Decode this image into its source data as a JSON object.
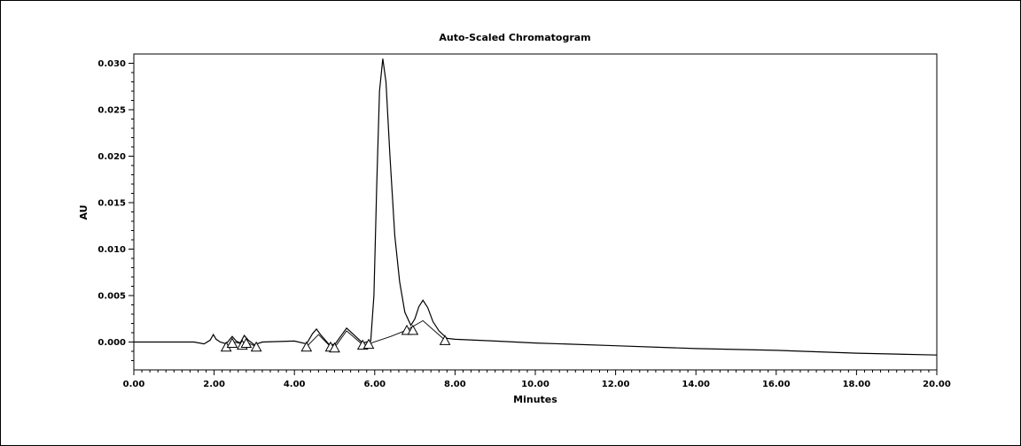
{
  "chart_data": {
    "type": "line",
    "title": "Auto-Scaled Chromatogram",
    "xlabel": "Minutes",
    "ylabel": "AU",
    "xlim": [
      0,
      20
    ],
    "ylim": [
      -0.003,
      0.031
    ],
    "grid": false,
    "x_ticks": [
      0,
      2,
      4,
      6,
      8,
      10,
      12,
      14,
      16,
      18,
      20
    ],
    "x_tick_labels": [
      "0.00",
      "2.00",
      "4.00",
      "6.00",
      "8.00",
      "10.00",
      "12.00",
      "14.00",
      "16.00",
      "18.00",
      "20.00"
    ],
    "y_ticks": [
      0,
      0.005,
      0.01,
      0.015,
      0.02,
      0.025,
      0.03
    ],
    "y_tick_labels": [
      "0.000",
      "0.005",
      "0.010",
      "0.015",
      "0.020",
      "0.025",
      "0.030"
    ],
    "series": [
      {
        "values": [
          [
            0,
            0
          ],
          [
            1.5,
            0
          ],
          [
            1.75,
            -0.0002
          ],
          [
            1.9,
            0.0002
          ],
          [
            1.98,
            0.0008
          ],
          [
            2.05,
            0.0003
          ],
          [
            2.15,
            0
          ],
          [
            2.3,
            -0.0002
          ],
          [
            2.45,
            0.0006
          ],
          [
            2.55,
            0.0001
          ],
          [
            2.65,
            -0.0001
          ],
          [
            2.75,
            0.0007
          ],
          [
            2.85,
            0.0002
          ],
          [
            3.0,
            -0.0003
          ],
          [
            3.2,
            0
          ],
          [
            4.0,
            0.0001
          ],
          [
            4.3,
            -0.0002
          ],
          [
            4.45,
            0.0009
          ],
          [
            4.55,
            0.0014
          ],
          [
            4.65,
            0.0008
          ],
          [
            4.85,
            -0.0002
          ],
          [
            5.0,
            -0.0003
          ],
          [
            5.15,
            0.0006
          ],
          [
            5.3,
            0.0015
          ],
          [
            5.45,
            0.0009
          ],
          [
            5.7,
            -0.0001
          ],
          [
            5.9,
            0.0001
          ],
          [
            5.98,
            0.005
          ],
          [
            6.05,
            0.017
          ],
          [
            6.12,
            0.027
          ],
          [
            6.2,
            0.0305
          ],
          [
            6.28,
            0.028
          ],
          [
            6.38,
            0.02
          ],
          [
            6.5,
            0.0115
          ],
          [
            6.62,
            0.0065
          ],
          [
            6.75,
            0.0032
          ],
          [
            6.9,
            0.0018
          ],
          [
            7.0,
            0.0025
          ],
          [
            7.1,
            0.0038
          ],
          [
            7.2,
            0.0045
          ],
          [
            7.32,
            0.0037
          ],
          [
            7.45,
            0.0022
          ],
          [
            7.6,
            0.0012
          ],
          [
            7.8,
            0.0004
          ],
          [
            8.0,
            0.0003
          ],
          [
            8.5,
            0.0002
          ],
          [
            9.0,
            0.0001
          ],
          [
            10.0,
            -0.0001
          ],
          [
            12.0,
            -0.0004
          ],
          [
            14.0,
            -0.0007
          ],
          [
            16.0,
            -0.0009
          ],
          [
            18.0,
            -0.0012
          ],
          [
            20.0,
            -0.0014
          ]
        ]
      }
    ],
    "baselines": [
      [
        [
          2.3,
          -0.0005
        ],
        [
          2.5,
          0
        ],
        [
          2.7,
          -0.0002
        ],
        [
          2.8,
          0
        ],
        [
          3.05,
          -0.0005
        ]
      ],
      [
        [
          4.3,
          -0.0005
        ],
        [
          4.6,
          0.0008
        ],
        [
          4.9,
          -0.0005
        ]
      ],
      [
        [
          5.0,
          -0.0006
        ],
        [
          5.3,
          0.0012
        ],
        [
          5.7,
          -0.0003
        ]
      ],
      [
        [
          5.85,
          -0.0002
        ],
        [
          6.4,
          0.0006
        ],
        [
          6.8,
          0.0013
        ]
      ],
      [
        [
          6.8,
          0.0013
        ],
        [
          7.2,
          0.0023
        ],
        [
          7.75,
          0.0002
        ]
      ]
    ],
    "markers": [
      [
        2.3,
        -0.0005
      ],
      [
        2.45,
        -0.0001
      ],
      [
        2.7,
        -0.0003
      ],
      [
        2.8,
        -0.0001
      ],
      [
        3.05,
        -0.0005
      ],
      [
        4.3,
        -0.0005
      ],
      [
        4.9,
        -0.0005
      ],
      [
        5.0,
        -0.0006
      ],
      [
        5.7,
        -0.0003
      ],
      [
        5.85,
        -0.0002
      ],
      [
        6.8,
        0.0013
      ],
      [
        6.95,
        0.0013
      ],
      [
        7.75,
        0.0002
      ]
    ]
  }
}
